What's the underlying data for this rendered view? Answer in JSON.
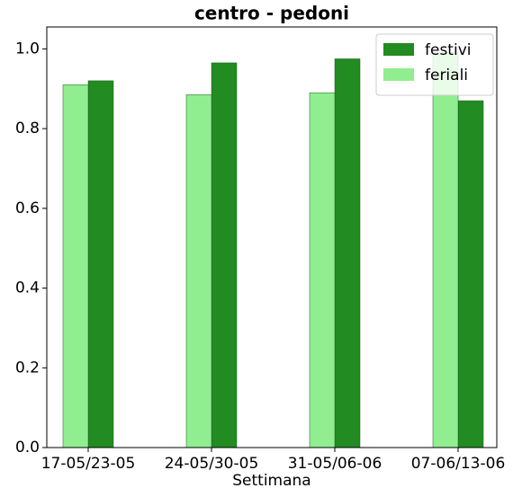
{
  "chart_data": {
    "type": "bar",
    "title": "centro - pedoni",
    "x_label": "Settimana",
    "categories": [
      "17-05/23-05",
      "24-05/30-05",
      "31-05/06-06",
      "07-06/13-06"
    ],
    "series": [
      {
        "name": "festivi",
        "color": "#228b22",
        "values": [
          0.92,
          0.965,
          0.975,
          0.87
        ]
      },
      {
        "name": "feriali",
        "color": "#90ee90",
        "values": [
          0.91,
          0.885,
          0.89,
          0.99
        ]
      }
    ],
    "ylim": [
      0,
      1.055
    ],
    "yticks": [
      {
        "value": 0,
        "label": "0.0"
      },
      0.2,
      0.4,
      0.6,
      0.8,
      {
        "value": 1,
        "label": "1.0"
      }
    ],
    "legend": "upper right"
  }
}
